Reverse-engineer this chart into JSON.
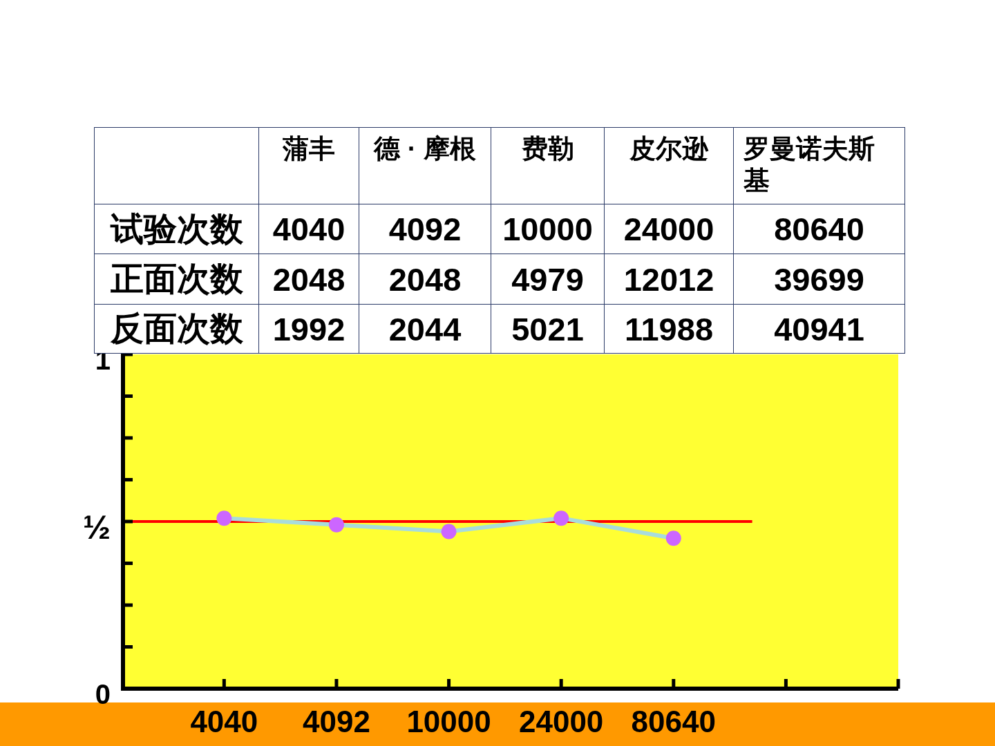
{
  "chart_data": [
    {
      "type": "heatmap",
      "categories": [
        "蒲丰",
        "德 · 摩根",
        "费勒",
        "皮尔逊",
        "罗曼诺夫斯基"
      ],
      "y_categories": [
        "试验次数",
        "正面次数",
        "反面次数"
      ],
      "cells": [
        [
          4040,
          4092,
          10000,
          24000,
          80640
        ],
        [
          2048,
          2048,
          4979,
          12012,
          39699
        ],
        [
          1992,
          2044,
          5021,
          11988,
          40941
        ]
      ],
      "data_labels": true
    },
    {
      "type": "line",
      "categories": [
        "4040",
        "4092",
        "10000",
        "24000",
        "80640",
        null,
        null
      ],
      "series": [
        {
          "color": "#a8dcdc",
          "colors": [
            "#cc66ff",
            "#cc66ff",
            "#cc66ff",
            "#cc66ff",
            "#cc66ff",
            null,
            null
          ],
          "values": [
            0.51,
            0.49,
            0.47,
            0.51,
            0.45,
            null,
            null
          ]
        }
      ],
      "ylim": [
        0,
        1
      ],
      "yticks": [
        0,
        {
          "value": 0.125,
          "label": null
        },
        {
          "value": 0.25,
          "label": null
        },
        {
          "value": 0.375,
          "label": null
        },
        {
          "value": 0.5,
          "label": "½"
        },
        {
          "value": 0.625,
          "label": null
        },
        {
          "value": 0.75,
          "label": null
        },
        {
          "value": 0.875,
          "label": null
        },
        1
      ],
      "ref_lines": [
        {
          "axis": "y",
          "value": 0.5,
          "color": "#ff0000"
        }
      ],
      "marker": "circle",
      "line_style": "solid"
    }
  ]
}
